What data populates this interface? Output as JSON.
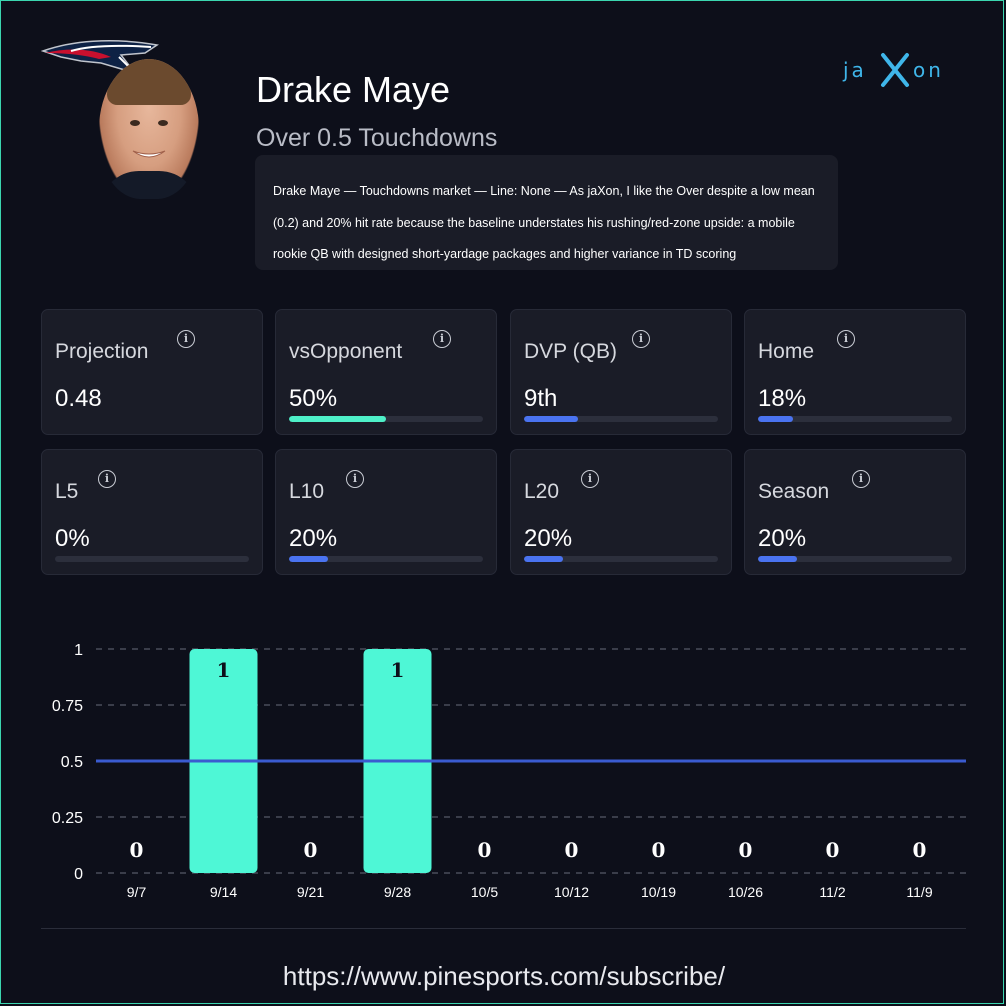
{
  "header": {
    "player_name": "Drake Maye",
    "market_label": "Over 0.5 Touchdowns",
    "analysis": "Drake Maye — Touchdowns market — Line: None — As jaXon, I like the Over despite a low mean (0.2) and 20% hit rate because the baseline understates his rushing/red-zone upside: a mobile rookie QB with designed short-yardage packages and higher variance in TD scoring",
    "brand_text": "jaXon"
  },
  "stats": [
    {
      "label": "Projection",
      "value": "0.48",
      "bar": null
    },
    {
      "label": "vsOpponent",
      "value": "50%",
      "bar": 0.5,
      "bar_color": "#4ef0c8"
    },
    {
      "label": "DVP (QB)",
      "value": "9th",
      "bar": 0.28,
      "bar_color": "#4a73f0"
    },
    {
      "label": "Home",
      "value": "18%",
      "bar": 0.18,
      "bar_color": "#4a73f0"
    },
    {
      "label": "L5",
      "value": "0%",
      "bar": 0.0,
      "bar_color": "#4a73f0"
    },
    {
      "label": "L10",
      "value": "20%",
      "bar": 0.2,
      "bar_color": "#4a73f0"
    },
    {
      "label": "L20",
      "value": "20%",
      "bar": 0.2,
      "bar_color": "#4a73f0"
    },
    {
      "label": "Season",
      "value": "20%",
      "bar": 0.2,
      "bar_color": "#4a73f0"
    }
  ],
  "chart_data": {
    "type": "bar",
    "categories": [
      "9/7",
      "9/14",
      "9/21",
      "9/28",
      "10/5",
      "10/12",
      "10/19",
      "10/26",
      "11/2",
      "11/9"
    ],
    "values": [
      0,
      1,
      0,
      1,
      0,
      0,
      0,
      0,
      0,
      0
    ],
    "ylim": [
      0,
      1
    ],
    "yticks": [
      "0",
      "0.25",
      "0.5",
      "0.75",
      "1"
    ],
    "line_value": 0.5,
    "bar_color": "#4ef7d6",
    "line_color": "#3a5bd0",
    "grid": true
  },
  "footer": {
    "url": "https://www.pinesports.com/subscribe/"
  },
  "icons": {
    "info": "info-icon",
    "info_glyph": "i"
  }
}
